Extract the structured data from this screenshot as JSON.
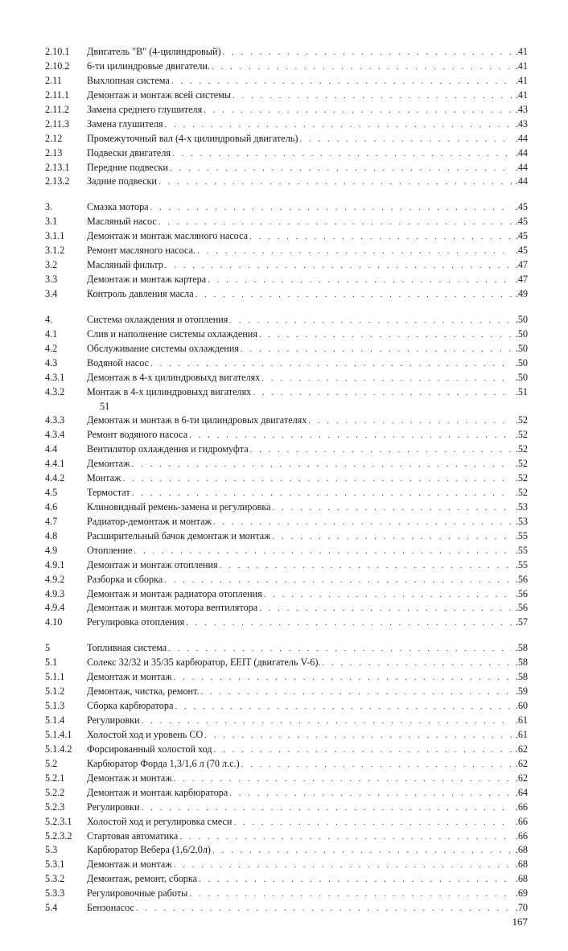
{
  "page_number": "167",
  "toc": [
    {
      "group": [
        {
          "num": "2.10.1",
          "title": "Двигатель \"В\" (4-цилиндровый)",
          "page": ".41"
        },
        {
          "num": "2.10.2",
          "title": "6-ти цилиндровые двигатели.",
          "page": ".41"
        },
        {
          "num": "2.11",
          "title": "Выхлопная система",
          "page": ".41"
        },
        {
          "num": "2.11.1",
          "title": "Демонтаж и монтаж всей системы",
          "page": ".41"
        },
        {
          "num": "2.11.2",
          "title": "Замена среднего глушителя",
          "page": ".43"
        },
        {
          "num": "2.11.3",
          "title": "Замена глушителя",
          "page": ".43"
        },
        {
          "num": "2.12",
          "title": "Промежуточный вал (4-х цилиндровый двигатель)",
          "page": ".44"
        },
        {
          "num": "2.13",
          "title": "Подвески двигателя",
          "page": ".44"
        },
        {
          "num": "2.13.1",
          "title": "Передние подвески",
          "page": ".44"
        },
        {
          "num": "2.13.2",
          "title": "Задние подвески",
          "page": ".44"
        }
      ]
    },
    {
      "group": [
        {
          "num": "3.",
          "title": "Смазка мотора",
          "page": ".45"
        },
        {
          "num": "3.1",
          "title": "Масляный насос",
          "page": ".45"
        },
        {
          "num": "3.1.1",
          "title": "Демонтаж и монтаж масляного насоса",
          "page": ".45"
        },
        {
          "num": "3.1.2",
          "title": "Ремонт масляного насоса.",
          "page": ".45"
        },
        {
          "num": "3.2",
          "title": "Масляный фильтр",
          "page": ".47"
        },
        {
          "num": "3.3",
          "title": "Демонтаж и монтаж картера",
          "page": ".47"
        },
        {
          "num": "3.4",
          "title": "Контроль давления масла",
          "page": ".49"
        }
      ]
    },
    {
      "group": [
        {
          "num": "4.",
          "title": "Система охлаждения и отопления",
          "page": ".50"
        },
        {
          "num": "4.1",
          "title": "Слив и наполнение системы охлаждения",
          "page": ".50"
        },
        {
          "num": "4.2",
          "title": "Обслуживание системы охлаждения",
          "page": ".50"
        },
        {
          "num": "4.3",
          "title": "Водяной насос",
          "page": ".50"
        },
        {
          "num": "4.3.1",
          "title": "Демонтаж в 4-х цилиндровыхд вигателях",
          "page": ".50"
        },
        {
          "num": "4.3.2",
          "title": "Монтаж в 4-х цилиндровыхд вигателях",
          "page": ".51",
          "extra_line": "51"
        },
        {
          "num": "4.3.3",
          "title": "Демонтаж и монтаж в 6-ти цилиндровых двигателях",
          "page": ".52"
        },
        {
          "num": "4.3.4",
          "title": "Ремонт водяного насоса",
          "page": ".52"
        },
        {
          "num": "4.4",
          "title": "Вентилятор охлаждения и гидромуфта",
          "page": ".52"
        },
        {
          "num": "4.4.1",
          "title": "Демонтаж",
          "page": ".52"
        },
        {
          "num": "4.4.2",
          "title": "Монтаж",
          "page": ".52"
        },
        {
          "num": "4.5",
          "title": "Термостат",
          "page": ".52"
        },
        {
          "num": "4.6",
          "title": "Клиновидный ремень-замена и регулировка",
          "page": ".53"
        },
        {
          "num": "4.7",
          "title": "Радиатор-демонтаж и монтаж",
          "page": ".53"
        },
        {
          "num": "4.8",
          "title": "Расширительный бачок демонтаж и монтаж",
          "page": ".55"
        },
        {
          "num": "4.9",
          "title": "Отопление",
          "page": ".55"
        },
        {
          "num": "4.9.1",
          "title": "Демонтаж и монтаж отопления",
          "page": ".55"
        },
        {
          "num": "4.9.2",
          "title": "Разборка и сборка",
          "page": ".56"
        },
        {
          "num": "4.9.3",
          "title": "Демонтаж и монтаж радиатора отопления",
          "page": ".56"
        },
        {
          "num": "4.9.4",
          "title": "Демонтаж и монтаж мотора вентилятора",
          "page": ".56"
        },
        {
          "num": "4.10",
          "title": "Регулировка отопления",
          "page": ".57"
        }
      ]
    },
    {
      "group": [
        {
          "num": "5",
          "title": "Топливная система",
          "page": ".58"
        },
        {
          "num": "5.1",
          "title": "Солекс 32/32 и 35/35 карбюратор, ЕЕIТ (двигатель V-6).",
          "page": ".58"
        },
        {
          "num": "5.1.1",
          "title": "Демонтаж и монтаж",
          "page": ".58"
        },
        {
          "num": "5.1.2",
          "title": "Демонтаж, чистка, ремонт.",
          "page": ".59"
        },
        {
          "num": "5.1.3",
          "title": "Сборка карбюратора",
          "page": ".60"
        },
        {
          "num": "5.1.4",
          "title": "Регулировки",
          "page": ".61"
        },
        {
          "num": "5.1.4.1",
          "title": "Холостой ход и уровень СО",
          "page": ".61"
        },
        {
          "num": "5.1.4.2",
          "title": "Форсированный холостой ход",
          "page": ".62"
        },
        {
          "num": "5.2",
          "title": "Карбюратор Форда 1,3/1,6 л (70 л.с.)",
          "page": ".62"
        },
        {
          "num": "5.2.1",
          "title": "Демонтаж и монтаж",
          "page": ".62"
        },
        {
          "num": "5.2.2",
          "title": "Демонтаж и монтаж карбюратора",
          "page": ".64"
        },
        {
          "num": "5.2.3",
          "title": "Регулировки",
          "page": ".66"
        },
        {
          "num": "5.2.3.1",
          "title": "Холостой ход и регулировка смеси",
          "page": ".66"
        },
        {
          "num": "5.2.3.2",
          "title": "Стартовая автоматика",
          "page": ".66"
        },
        {
          "num": "5.3",
          "title": "Карбюратор Вебера (1,6/2,0л)",
          "page": ".68"
        },
        {
          "num": "5.3.1",
          "title": "Демонтаж и монтаж",
          "page": ".68"
        },
        {
          "num": "5.3.2",
          "title": "Демонтаж, ремонт, сборка",
          "page": ".68"
        },
        {
          "num": "5.3.3",
          "title": "Регулировочные работы",
          "page": ".69"
        },
        {
          "num": "5.4",
          "title": "Бензонасос",
          "page": ".70"
        }
      ]
    }
  ]
}
